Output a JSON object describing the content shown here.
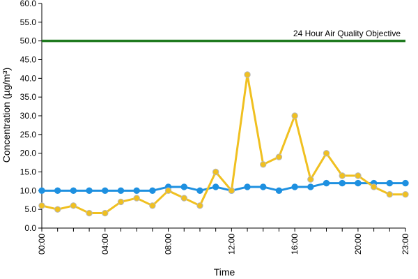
{
  "chart_data": {
    "type": "line",
    "xlabel": "Time",
    "ylabel": "Concentration (µg/m³)",
    "ylim": [
      0,
      60
    ],
    "yticks": [
      "0.0",
      "5.0",
      "10.0",
      "15.0",
      "20.0",
      "25.0",
      "30.0",
      "35.0",
      "40.0",
      "45.0",
      "50.0",
      "55.0",
      "60.0"
    ],
    "x": [
      "00:00",
      "01:00",
      "02:00",
      "03:00",
      "04:00",
      "05:00",
      "06:00",
      "07:00",
      "08:00",
      "09:00",
      "10:00",
      "11:00",
      "12:00",
      "13:00",
      "14:00",
      "15:00",
      "16:00",
      "17:00",
      "18:00",
      "19:00",
      "20:00",
      "21:00",
      "22:00",
      "23:00"
    ],
    "x_tick_labels": [
      "00:00",
      "04:00",
      "08:00",
      "12:00",
      "16:00",
      "20:00",
      "23:00"
    ],
    "grid": false,
    "reference_line": {
      "value": 50,
      "label": "24 Hour Air Quality Objective",
      "color": "#1f7a1f"
    },
    "series": [
      {
        "color": "#1e90e0",
        "values": [
          10,
          10,
          10,
          10,
          10,
          10,
          10,
          10,
          11,
          11,
          10,
          11,
          10,
          11,
          11,
          10,
          11,
          11,
          12,
          12,
          12,
          12,
          12,
          12
        ]
      },
      {
        "color": "#f0c020",
        "values": [
          6,
          5,
          6,
          4,
          4,
          7,
          8,
          6,
          10,
          8,
          6,
          15,
          10,
          41,
          17,
          19,
          30,
          13,
          20,
          14,
          14,
          11,
          9,
          9
        ]
      }
    ]
  }
}
